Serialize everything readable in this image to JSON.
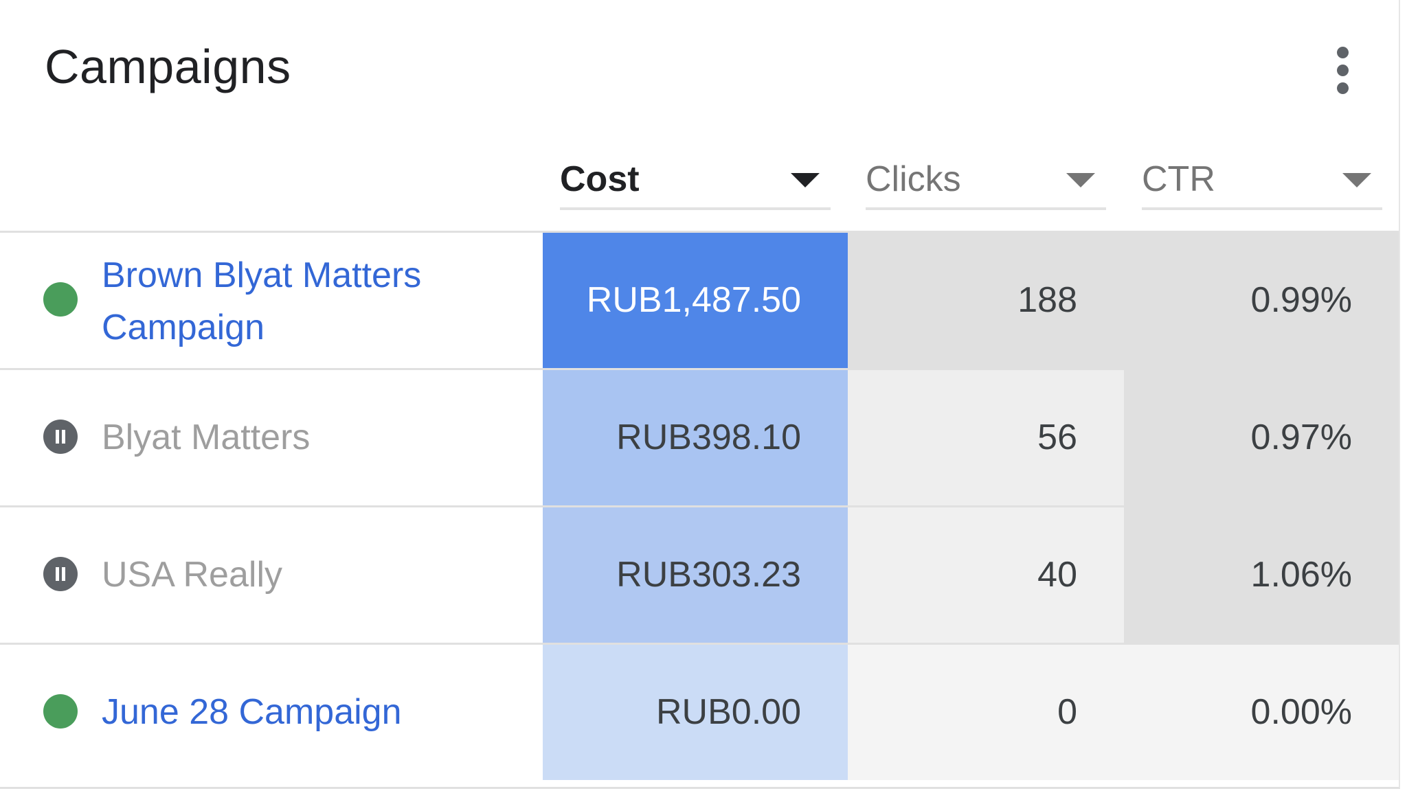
{
  "card": {
    "title": "Campaigns",
    "menu_icon": "more-vert-icon"
  },
  "columns": {
    "cost": "Cost",
    "clicks": "Clicks",
    "ctr": "CTR",
    "sort_icon": "arrow-drop-down-icon"
  },
  "colors": {
    "cost_heat": [
      "#4f86e8",
      "#a9c4f2",
      "#b0c8f2",
      "#cbdcf6"
    ],
    "clicks_heat": [
      "#e0e0e0",
      "#eeeeee",
      "#f0f0f0",
      "#f4f4f4"
    ],
    "ctr_heat": [
      "#e0e0e0",
      "#e0e0e0",
      "#e0e0e0",
      "#f4f4f4"
    ],
    "enabled": "#4a9d5b",
    "paused": "#5f6368",
    "link": "#3367d6"
  },
  "rows": [
    {
      "status": "enabled",
      "status_icon": "enabled-status-icon",
      "name": "Brown Blyat Matters Campaign",
      "cost": "RUB1,487.50",
      "clicks": "188",
      "ctr": "0.99%"
    },
    {
      "status": "paused",
      "status_icon": "paused-status-icon",
      "name": "Blyat Matters",
      "cost": "RUB398.10",
      "clicks": "56",
      "ctr": "0.97%"
    },
    {
      "status": "paused",
      "status_icon": "paused-status-icon",
      "name": "USA Really",
      "cost": "RUB303.23",
      "clicks": "40",
      "ctr": "1.06%"
    },
    {
      "status": "enabled",
      "status_icon": "enabled-status-icon",
      "name": "June 28 Campaign",
      "cost": "RUB0.00",
      "clicks": "0",
      "ctr": "0.00%"
    }
  ]
}
